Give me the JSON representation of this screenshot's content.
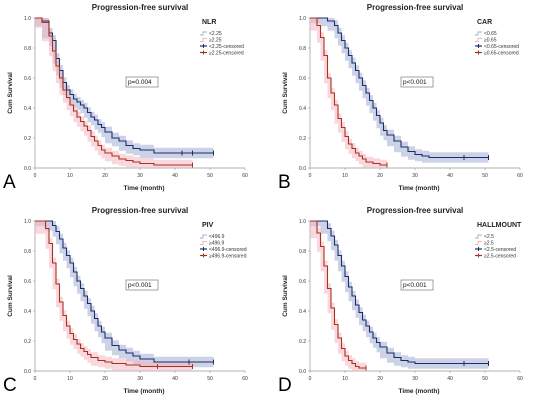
{
  "chart_data": [
    {
      "type": "line",
      "panel_letter": "A",
      "title": "Progression-free survival",
      "xlabel": "Time (month)",
      "ylabel": "Cum Survival",
      "xlim": [
        0,
        60
      ],
      "ylim": [
        0,
        1.0
      ],
      "x_ticks": [
        "0",
        "10",
        "20",
        "30",
        "40",
        "50",
        "60"
      ],
      "y_ticks": [
        "0.0",
        "0.2",
        "0.4",
        "0.6",
        "0.8",
        "1.0"
      ],
      "legend_title": "NLR",
      "legend_entries": [
        "<2.25",
        "≥2.25",
        "<2.25-censored",
        "≥2.25-censored"
      ],
      "annotation": "p=0.004",
      "colors": {
        "low": "#1a2e6e",
        "high": "#a8321a",
        "low_ci": "#a4aed4",
        "high_ci": "#f4b6c4"
      },
      "series": [
        {
          "name": "<2.25",
          "x": [
            0,
            2,
            4,
            5,
            6,
            7,
            8,
            9,
            10,
            11,
            12,
            13,
            14,
            15,
            16,
            17,
            18,
            19,
            20,
            22,
            24,
            26,
            28,
            30,
            34,
            42,
            51
          ],
          "y": [
            1.0,
            0.98,
            0.9,
            0.85,
            0.73,
            0.65,
            0.57,
            0.52,
            0.49,
            0.46,
            0.44,
            0.42,
            0.4,
            0.37,
            0.34,
            0.32,
            0.29,
            0.27,
            0.24,
            0.2,
            0.18,
            0.15,
            0.13,
            0.12,
            0.1,
            0.1,
            0.1
          ],
          "censored_x": [
            42,
            45,
            51
          ]
        },
        {
          "name": "≥2.25",
          "x": [
            0,
            2,
            4,
            5,
            6,
            7,
            8,
            9,
            10,
            11,
            12,
            13,
            14,
            15,
            16,
            17,
            18,
            19,
            20,
            22,
            24,
            26,
            28,
            30,
            34,
            38,
            45
          ],
          "y": [
            1.0,
            0.97,
            0.88,
            0.78,
            0.68,
            0.6,
            0.52,
            0.47,
            0.42,
            0.38,
            0.34,
            0.31,
            0.28,
            0.25,
            0.21,
            0.18,
            0.15,
            0.12,
            0.1,
            0.08,
            0.06,
            0.05,
            0.04,
            0.03,
            0.02,
            0.02,
            0.02
          ],
          "censored_x": [
            45
          ]
        }
      ]
    },
    {
      "type": "line",
      "panel_letter": "B",
      "title": "Progression-free survival",
      "xlabel": "Time (month)",
      "ylabel": "Cum Survival",
      "xlim": [
        0,
        60
      ],
      "ylim": [
        0,
        1.0
      ],
      "x_ticks": [
        "0",
        "10",
        "20",
        "30",
        "40",
        "50",
        "60"
      ],
      "y_ticks": [
        "0.0",
        "0.2",
        "0.4",
        "0.6",
        "0.8",
        "1.0"
      ],
      "legend_title": "CAR",
      "legend_entries": [
        "<0.65",
        "≥0.65",
        "<0.65-censored",
        "≥0.65-censored"
      ],
      "annotation": "p<0.001",
      "colors": {
        "low": "#1a2e6e",
        "high": "#a8321a",
        "low_ci": "#a4aed4",
        "high_ci": "#f4b6c4"
      },
      "series": [
        {
          "name": "<0.65",
          "x": [
            0,
            3,
            5,
            7,
            8,
            9,
            10,
            11,
            12,
            13,
            14,
            15,
            16,
            17,
            18,
            19,
            20,
            21,
            22,
            24,
            26,
            28,
            30,
            32,
            34,
            44,
            51
          ],
          "y": [
            1.0,
            1.0,
            0.98,
            0.95,
            0.9,
            0.85,
            0.8,
            0.75,
            0.7,
            0.65,
            0.6,
            0.55,
            0.5,
            0.45,
            0.4,
            0.35,
            0.3,
            0.25,
            0.22,
            0.18,
            0.14,
            0.11,
            0.09,
            0.08,
            0.07,
            0.07,
            0.07
          ],
          "censored_x": [
            44,
            51
          ]
        },
        {
          "name": "≥0.65",
          "x": [
            0,
            2,
            3,
            4,
            5,
            6,
            7,
            8,
            9,
            10,
            11,
            12,
            13,
            14,
            15,
            16,
            18,
            20,
            22
          ],
          "y": [
            1.0,
            0.95,
            0.87,
            0.75,
            0.6,
            0.5,
            0.42,
            0.33,
            0.27,
            0.21,
            0.16,
            0.13,
            0.1,
            0.08,
            0.06,
            0.04,
            0.03,
            0.02,
            0.02
          ],
          "censored_x": [
            22
          ]
        }
      ]
    },
    {
      "type": "line",
      "panel_letter": "C",
      "title": "Progression-free survival",
      "xlabel": "Time (month)",
      "ylabel": "Cum Survival",
      "xlim": [
        0,
        60
      ],
      "ylim": [
        0,
        1.0
      ],
      "x_ticks": [
        "0",
        "10",
        "20",
        "30",
        "40",
        "50",
        "60"
      ],
      "y_ticks": [
        "0.0",
        "0.2",
        "0.4",
        "0.6",
        "0.8",
        "1.0"
      ],
      "legend_title": "PIV",
      "legend_entries": [
        "<496.9",
        "≥496.9",
        "<496.9-censored",
        "≥496.9-censored"
      ],
      "annotation": "p<0.001",
      "colors": {
        "low": "#1a2e6e",
        "high": "#a8321a",
        "low_ci": "#a4aed4",
        "high_ci": "#f4b6c4"
      },
      "series": [
        {
          "name": "<496.9",
          "x": [
            0,
            3,
            5,
            6,
            7,
            8,
            9,
            10,
            11,
            12,
            13,
            14,
            15,
            16,
            17,
            18,
            19,
            20,
            22,
            24,
            26,
            28,
            30,
            34,
            44,
            51
          ],
          "y": [
            1.0,
            1.0,
            0.97,
            0.93,
            0.88,
            0.82,
            0.77,
            0.72,
            0.66,
            0.6,
            0.55,
            0.5,
            0.45,
            0.4,
            0.35,
            0.3,
            0.26,
            0.22,
            0.17,
            0.14,
            0.12,
            0.1,
            0.08,
            0.06,
            0.06,
            0.06
          ],
          "censored_x": [
            44,
            51
          ]
        },
        {
          "name": "≥496.9",
          "x": [
            0,
            3,
            4,
            5,
            6,
            7,
            8,
            9,
            10,
            11,
            12,
            13,
            14,
            15,
            16,
            18,
            20,
            22,
            26,
            30,
            35,
            45
          ],
          "y": [
            1.0,
            0.95,
            0.85,
            0.72,
            0.58,
            0.46,
            0.37,
            0.3,
            0.25,
            0.21,
            0.18,
            0.15,
            0.13,
            0.11,
            0.09,
            0.07,
            0.06,
            0.05,
            0.04,
            0.03,
            0.03,
            0.03
          ],
          "censored_x": [
            35,
            45
          ]
        }
      ]
    },
    {
      "type": "line",
      "panel_letter": "D",
      "title": "Progression-free survival",
      "xlabel": "Time (month)",
      "ylabel": "Cum Survival",
      "xlim": [
        0,
        60
      ],
      "ylim": [
        0,
        1.0
      ],
      "x_ticks": [
        "0",
        "10",
        "20",
        "30",
        "40",
        "50",
        "60"
      ],
      "y_ticks": [
        "0.0",
        "0.2",
        "0.4",
        "0.6",
        "0.8",
        "1.0"
      ],
      "legend_title": "HALLMOUNT",
      "legend_entries": [
        "<2.5",
        "≥2.5",
        "<2.5-censored",
        "≥2.5-censored"
      ],
      "annotation": "p<0.001",
      "colors": {
        "low": "#1a2e6e",
        "high": "#a8321a",
        "low_ci": "#a4aed4",
        "high_ci": "#f4b6c4"
      },
      "series": [
        {
          "name": "<2.5",
          "x": [
            0,
            3,
            5,
            6,
            7,
            8,
            9,
            10,
            11,
            12,
            13,
            14,
            15,
            16,
            17,
            18,
            19,
            20,
            22,
            24,
            26,
            28,
            30,
            34,
            44,
            51
          ],
          "y": [
            1.0,
            1.0,
            0.95,
            0.9,
            0.84,
            0.77,
            0.7,
            0.63,
            0.56,
            0.5,
            0.44,
            0.39,
            0.34,
            0.3,
            0.26,
            0.22,
            0.19,
            0.16,
            0.12,
            0.09,
            0.07,
            0.06,
            0.05,
            0.05,
            0.05,
            0.05
          ],
          "censored_x": [
            44,
            51
          ]
        },
        {
          "name": "≥2.5",
          "x": [
            0,
            2,
            3,
            4,
            5,
            6,
            7,
            8,
            9,
            10,
            11,
            12,
            13,
            14,
            16
          ],
          "y": [
            1.0,
            0.92,
            0.83,
            0.7,
            0.55,
            0.42,
            0.31,
            0.22,
            0.15,
            0.1,
            0.07,
            0.05,
            0.03,
            0.02,
            0.02
          ],
          "censored_x": [
            16
          ]
        }
      ]
    }
  ]
}
